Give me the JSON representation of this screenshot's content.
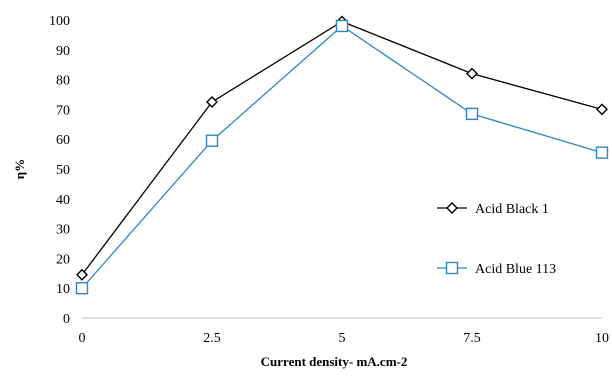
{
  "chart_data": {
    "type": "line",
    "title": "",
    "xlabel": "Current density- mA.cm-2",
    "ylabel": "η%",
    "x": [
      0,
      2.5,
      5,
      7.5,
      10
    ],
    "x_tick_labels": [
      "0",
      "2.5",
      "5",
      "7.5",
      "10"
    ],
    "xlim": [
      0,
      10
    ],
    "ylim": [
      0,
      100
    ],
    "y_ticks": [
      0,
      10,
      20,
      30,
      40,
      50,
      60,
      70,
      80,
      90,
      100
    ],
    "grid": false,
    "legend_position": "right",
    "series": [
      {
        "name": "Acid Black 1",
        "values": [
          14.5,
          72.5,
          99.5,
          82,
          70
        ],
        "color": "#000000",
        "marker": "diamond"
      },
      {
        "name": "Acid Blue 113",
        "values": [
          10,
          59.5,
          98,
          68.5,
          55.5
        ],
        "color": "#2e86c1",
        "marker": "square"
      }
    ]
  }
}
